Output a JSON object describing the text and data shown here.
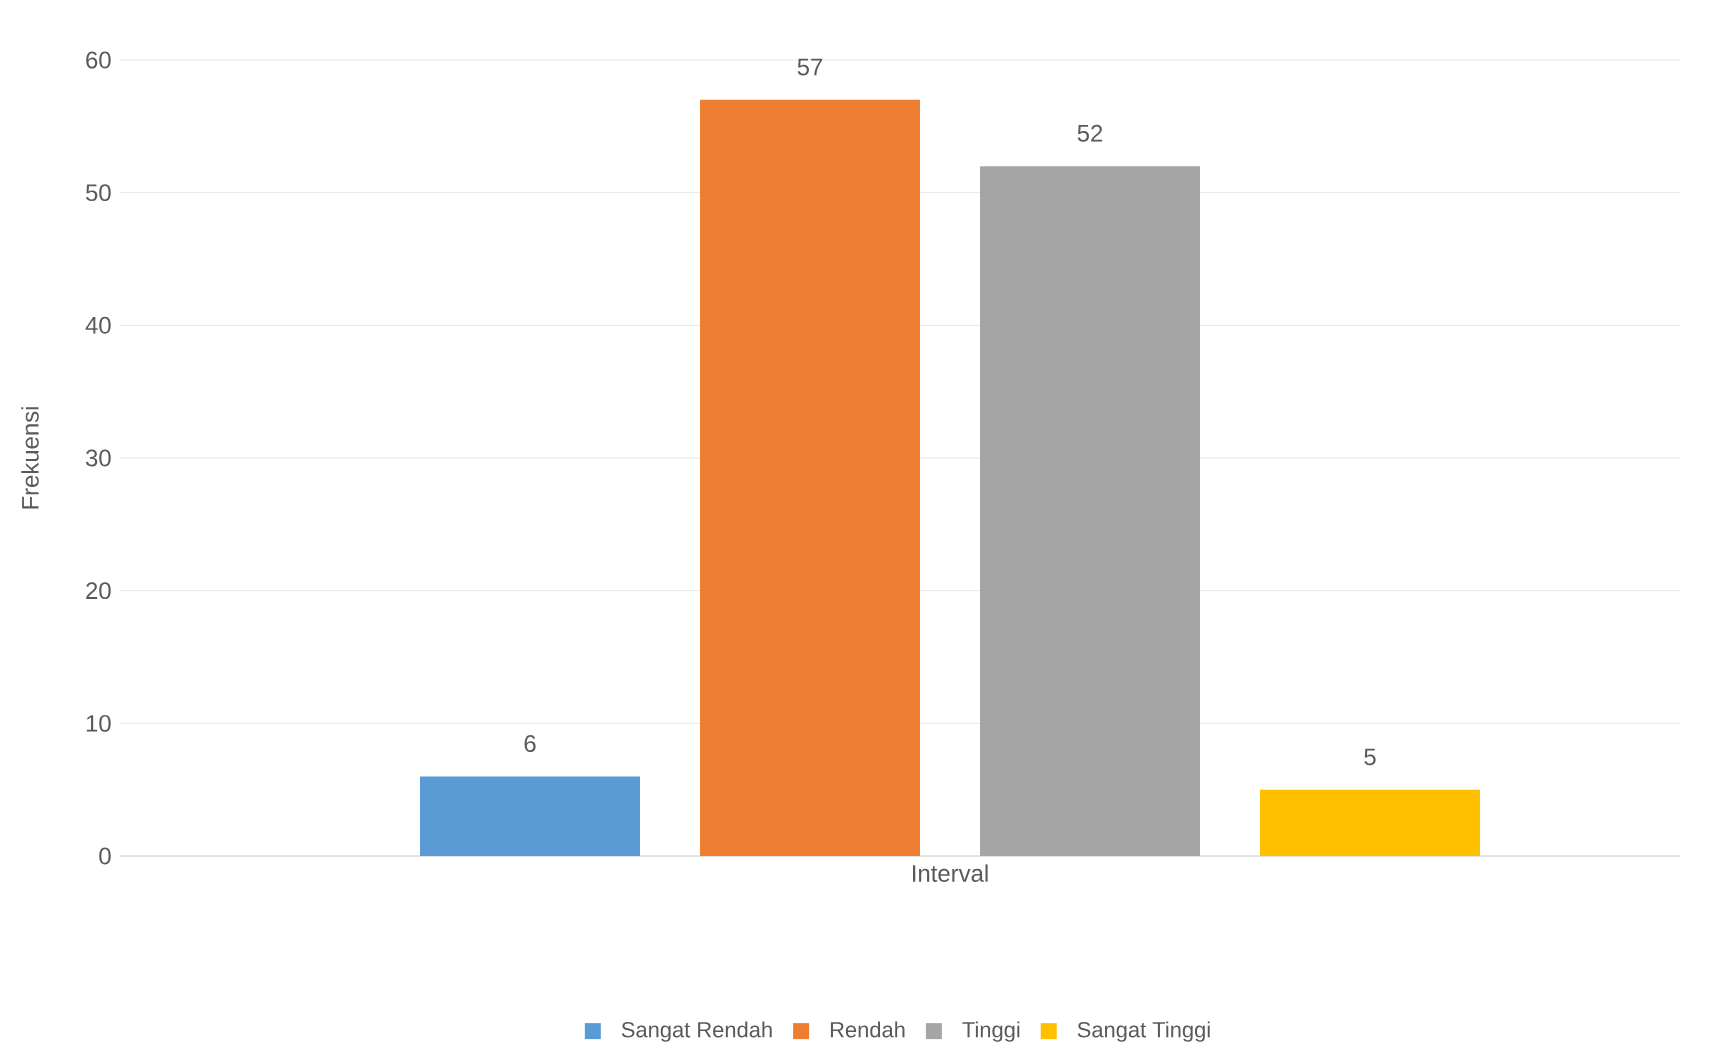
{
  "chart_data": {
    "type": "bar",
    "ylabel": "Frekuensi",
    "categories": [
      "Interval"
    ],
    "series": [
      {
        "name": "Sangat Rendah",
        "color": "#5b9bd5",
        "values": [
          6
        ]
      },
      {
        "name": "Rendah",
        "color": "#ed7d31",
        "values": [
          57
        ]
      },
      {
        "name": "Tinggi",
        "color": "#a5a5a5",
        "values": [
          52
        ]
      },
      {
        "name": "Sangat Tinggi",
        "color": "#ffc000",
        "values": [
          5
        ]
      }
    ],
    "ylim": [
      0,
      60
    ],
    "yticks": [
      0,
      10,
      20,
      30,
      40,
      50,
      60
    ],
    "grid": "y",
    "legend": "bottom",
    "data_labels": true
  }
}
